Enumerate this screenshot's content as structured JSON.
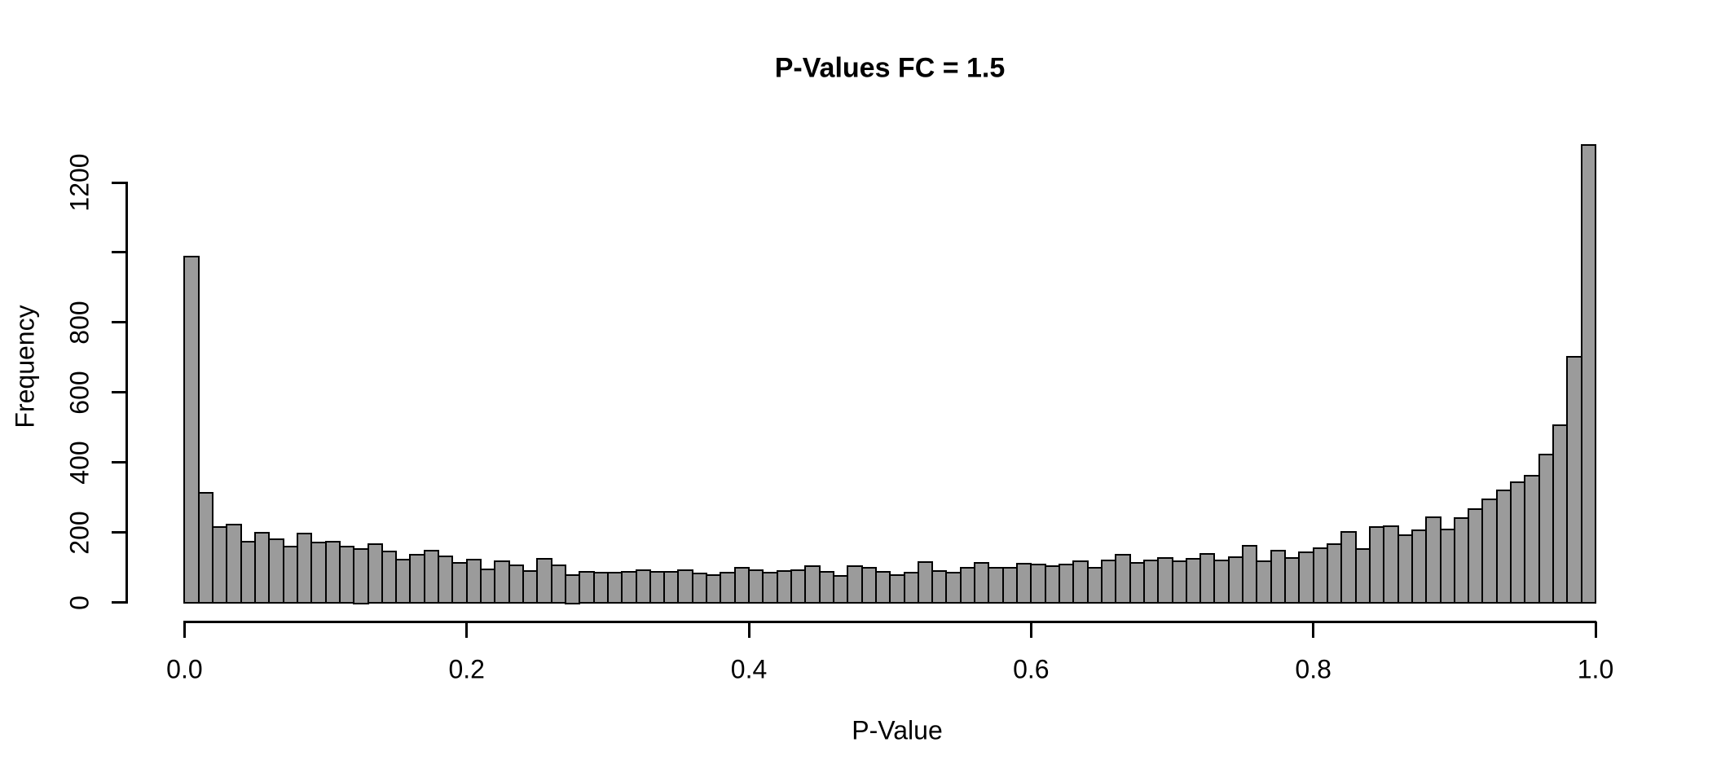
{
  "title": "P-Values FC = 1.5",
  "x_axis_label": "P-Value",
  "y_axis_label": "Frequency",
  "colors": {
    "background": "#ffffff",
    "bar_fill": "#9b9b9b",
    "bar_border": "#000000",
    "axis": "#000000",
    "text": "#000000"
  },
  "chart_data": {
    "type": "bar",
    "subtype": "histogram",
    "title": "P-Values FC = 1.5",
    "xlabel": "P-Value",
    "ylabel": "Frequency",
    "xlim": [
      0.0,
      1.0
    ],
    "ylim": [
      0,
      1200
    ],
    "grid": false,
    "legend": false,
    "bin_start": 0.0,
    "bin_width": 0.01,
    "x_ticks": [
      {
        "value": 0.0,
        "label": "0.0"
      },
      {
        "value": 0.2,
        "label": "0.2"
      },
      {
        "value": 0.4,
        "label": "0.4"
      },
      {
        "value": 0.6,
        "label": "0.6"
      },
      {
        "value": 0.8,
        "label": "0.8"
      },
      {
        "value": 1.0,
        "label": "1.0"
      }
    ],
    "y_ticks": [
      {
        "value": 0,
        "label": "0"
      },
      {
        "value": 200,
        "label": "200"
      },
      {
        "value": 400,
        "label": "400"
      },
      {
        "value": 600,
        "label": "600"
      },
      {
        "value": 800,
        "label": "800"
      },
      {
        "value": 1000,
        "label": ""
      },
      {
        "value": 1200,
        "label": "1200"
      }
    ],
    "values": [
      985,
      310,
      212,
      220,
      171,
      197,
      179,
      158,
      195,
      168,
      170,
      156,
      150,
      163,
      142,
      119,
      135,
      145,
      129,
      110,
      119,
      92,
      115,
      104,
      88,
      123,
      104,
      75,
      86,
      82,
      82,
      86,
      90,
      84,
      86,
      90,
      80,
      76,
      82,
      96,
      90,
      82,
      88,
      90,
      101,
      86,
      74,
      101,
      96,
      84,
      76,
      82,
      114,
      87,
      82,
      96,
      111,
      96,
      96,
      109,
      105,
      101,
      105,
      115,
      96,
      118,
      133,
      110,
      118,
      125,
      115,
      123,
      136,
      118,
      128,
      160,
      115,
      145,
      125,
      140,
      152,
      165,
      200,
      149,
      212,
      216,
      190,
      203,
      240,
      207,
      238,
      265,
      292,
      318,
      341,
      359,
      420,
      505,
      700,
      1305
    ]
  }
}
